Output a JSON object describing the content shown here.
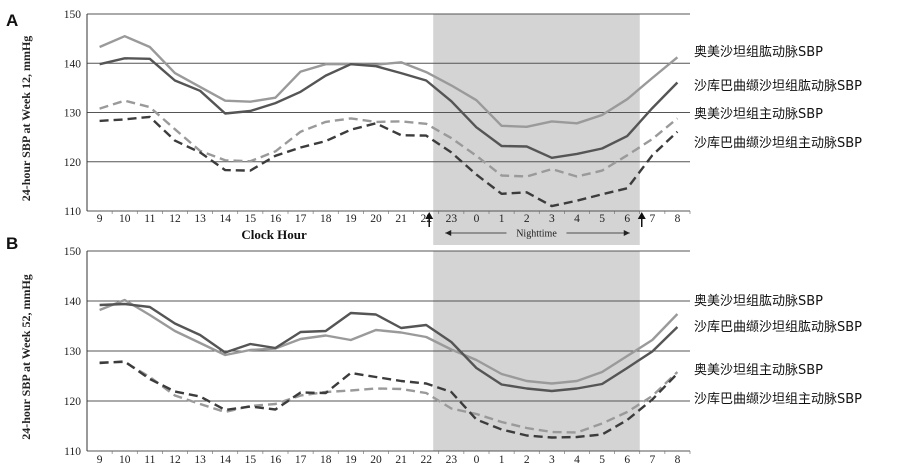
{
  "colors": {
    "night_band": "#d4d4d4",
    "gridline": "#555555",
    "brachial_olmesartan": "#9a9a9a",
    "brachial_sacubitril": "#555555",
    "central_olmesartan": "#9a9a9a",
    "central_sacubitril": "#3c3c3c"
  },
  "chart_data": [
    {
      "panel": "A",
      "type": "line",
      "ylabel": "24-hour SBP at Week 12, mmHg",
      "xlabel": "Clock Hour",
      "night_label": "Nighttime",
      "ylim": [
        110,
        150
      ],
      "yticks": [
        110,
        120,
        130,
        140,
        150
      ],
      "grid": true,
      "night_span": [
        "23",
        "6"
      ],
      "night_arrows": true,
      "categories": [
        "9",
        "10",
        "11",
        "12",
        "13",
        "14",
        "15",
        "16",
        "17",
        "18",
        "19",
        "20",
        "21",
        "22",
        "23",
        "0",
        "1",
        "2",
        "3",
        "4",
        "5",
        "6",
        "7",
        "8"
      ],
      "series": [
        {
          "name": "奥美沙坦组肱动脉SBP",
          "style": "solid",
          "color_key": "brachial_olmesartan",
          "values": [
            143.3,
            145.5,
            143.3,
            138.0,
            135.2,
            132.4,
            132.2,
            133.0,
            138.3,
            139.8,
            139.8,
            139.7,
            140.2,
            138.2,
            135.5,
            132.5,
            127.3,
            127.1,
            128.2,
            127.8,
            129.5,
            132.7,
            137.0,
            141.2
          ]
        },
        {
          "name": "沙库巴曲缬沙坦组肱动脉SBP",
          "style": "solid",
          "color_key": "brachial_sacubitril",
          "values": [
            139.8,
            141.0,
            140.9,
            136.5,
            134.4,
            129.8,
            130.3,
            131.9,
            134.2,
            137.5,
            139.8,
            139.4,
            138.0,
            136.5,
            132.3,
            127.0,
            123.2,
            123.1,
            120.8,
            121.6,
            122.7,
            125.2,
            130.9,
            136.1
          ]
        },
        {
          "name": "奥美沙坦组主动脉SBP",
          "style": "dashed",
          "color_key": "central_olmesartan",
          "values": [
            130.8,
            132.4,
            131.1,
            126.6,
            122.2,
            120.3,
            120.1,
            122.1,
            126.1,
            128.1,
            128.8,
            128.1,
            128.2,
            127.7,
            124.8,
            121.2,
            117.2,
            117.0,
            118.5,
            117.0,
            118.2,
            121.3,
            124.6,
            128.8
          ]
        },
        {
          "name": "沙库巴曲缬沙坦组主动脉SBP",
          "style": "dashed",
          "color_key": "central_sacubitril",
          "values": [
            128.3,
            128.6,
            129.1,
            124.3,
            121.9,
            118.3,
            118.2,
            121.2,
            122.9,
            124.2,
            126.5,
            127.8,
            125.4,
            125.3,
            121.9,
            117.4,
            113.5,
            113.8,
            111.0,
            112.1,
            113.4,
            114.6,
            121.3,
            126.1
          ]
        }
      ]
    },
    {
      "panel": "B",
      "type": "line",
      "ylabel": "24-hour SBP at Week 52, mmHg",
      "xlabel": "",
      "ylim": [
        110,
        150
      ],
      "yticks": [
        110,
        120,
        130,
        140,
        150
      ],
      "grid": true,
      "night_span": [
        "23",
        "6"
      ],
      "night_arrows": false,
      "categories": [
        "9",
        "10",
        "11",
        "12",
        "13",
        "14",
        "15",
        "16",
        "17",
        "18",
        "19",
        "20",
        "21",
        "22",
        "23",
        "0",
        "1",
        "2",
        "3",
        "4",
        "5",
        "6",
        "7",
        "8"
      ],
      "series": [
        {
          "name": "奥美沙坦组肱动脉SBP",
          "style": "solid",
          "color_key": "brachial_olmesartan",
          "values": [
            138.2,
            140.2,
            137.2,
            134.0,
            131.6,
            129.2,
            130.2,
            130.5,
            132.4,
            133.1,
            132.2,
            134.2,
            133.7,
            132.8,
            130.3,
            128.2,
            125.4,
            124.0,
            123.5,
            124.0,
            125.8,
            129.0,
            132.2,
            137.4
          ]
        },
        {
          "name": "沙库巴曲缬沙坦组肱动脉SBP",
          "style": "solid",
          "color_key": "brachial_sacubitril",
          "values": [
            139.2,
            139.4,
            138.8,
            135.5,
            133.2,
            129.7,
            131.4,
            130.6,
            133.8,
            134.0,
            137.6,
            137.3,
            134.6,
            135.2,
            131.8,
            126.6,
            123.3,
            122.5,
            122.0,
            122.5,
            123.4,
            126.6,
            129.9,
            134.8
          ]
        },
        {
          "name": "奥美沙坦组主动脉SBP",
          "style": "dashed",
          "color_key": "central_olmesartan",
          "values": [
            127.7,
            127.8,
            124.8,
            121.1,
            119.4,
            117.8,
            119.0,
            119.4,
            121.1,
            121.8,
            122.1,
            122.5,
            122.4,
            121.6,
            118.5,
            117.4,
            115.8,
            114.6,
            113.8,
            113.7,
            115.5,
            117.8,
            121.0,
            125.8
          ]
        },
        {
          "name": "沙库巴曲缬沙坦组主动脉SBP",
          "style": "dashed",
          "color_key": "central_sacubitril",
          "values": [
            127.6,
            127.9,
            124.4,
            121.9,
            120.9,
            118.2,
            118.9,
            118.3,
            121.7,
            121.6,
            125.6,
            124.8,
            124.0,
            123.5,
            121.8,
            116.3,
            114.3,
            113.1,
            112.7,
            112.8,
            113.3,
            116.2,
            120.3,
            125.5
          ]
        }
      ]
    }
  ]
}
